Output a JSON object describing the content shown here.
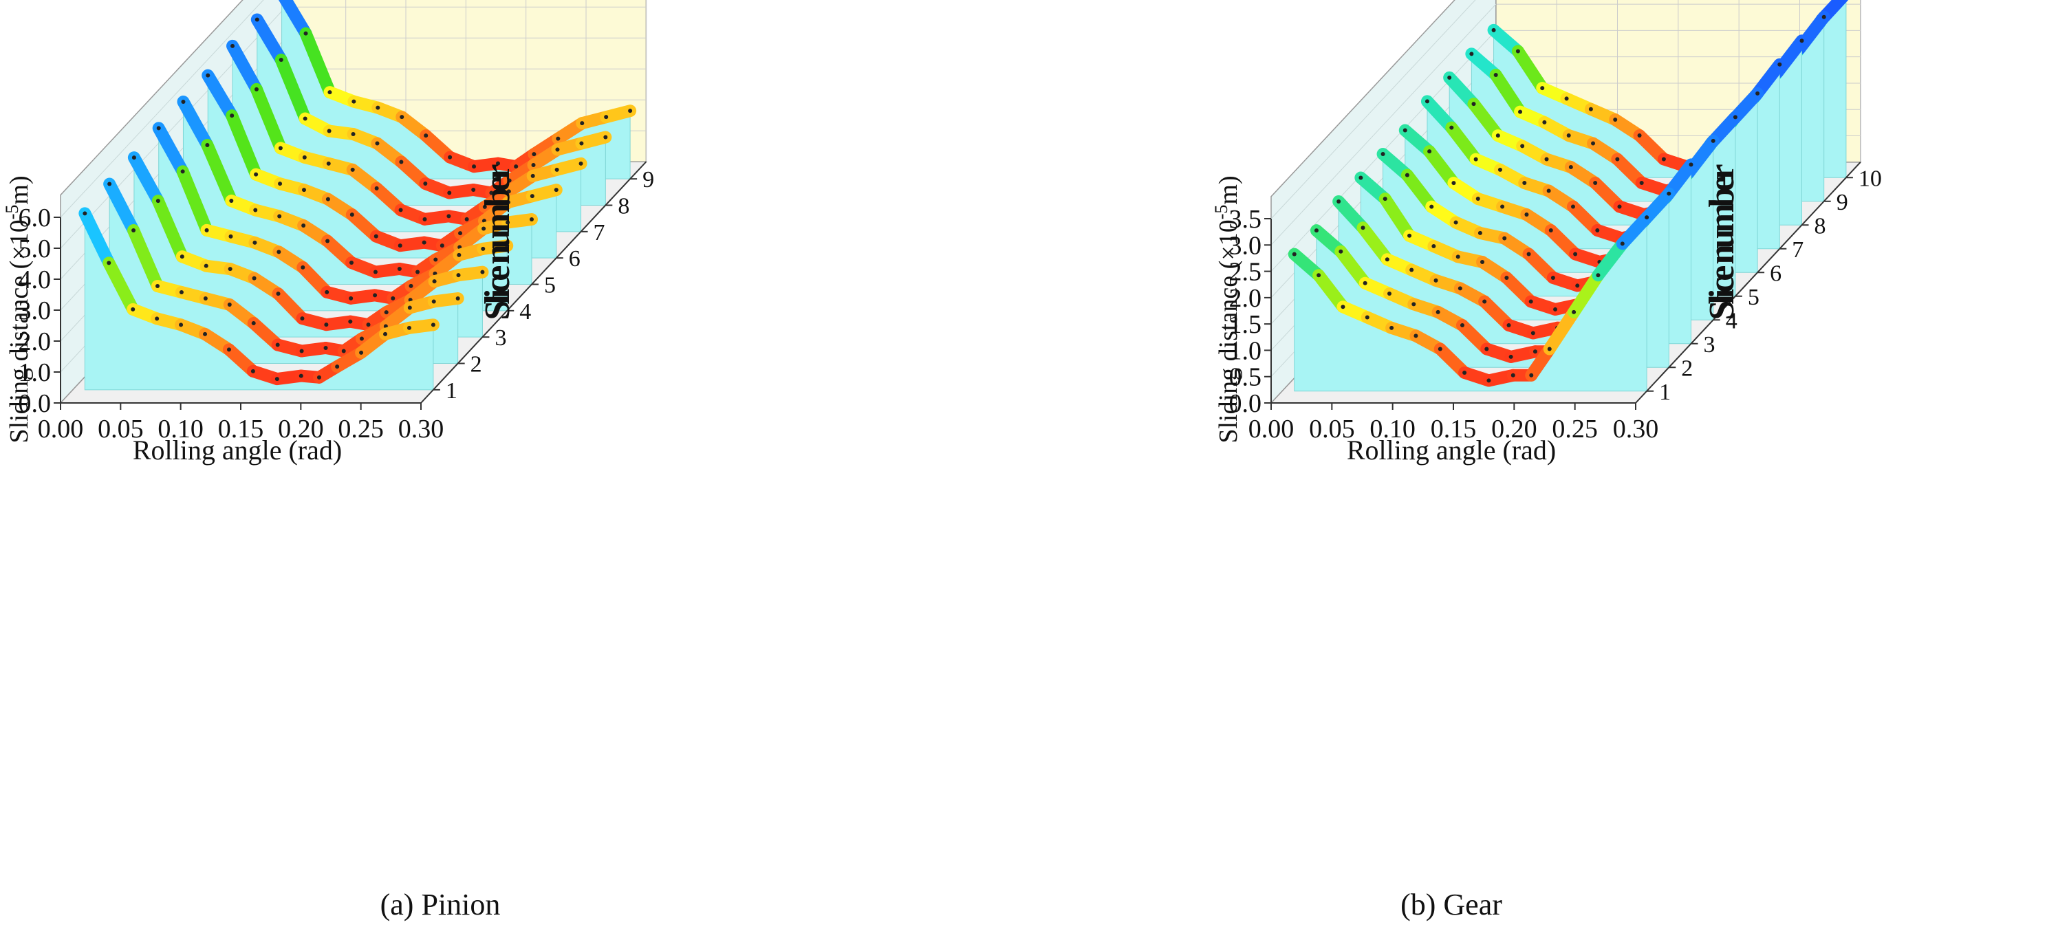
{
  "chart_data": [
    {
      "type": "area",
      "panel": "a",
      "caption": "(a) Pinion",
      "xlabel": "Rolling angle (rad)",
      "ylabel": "Sliding distance (×10⁻⁵m)",
      "ylabel_parts": [
        "Sliding distance (×10",
        "-5",
        "m)"
      ],
      "zlabel": "Slice number",
      "xlim": [
        0.0,
        0.3
      ],
      "ylim": [
        0.0,
        6.0
      ],
      "xticks": [
        "0.00",
        "0.05",
        "0.10",
        "0.15",
        "0.20",
        "0.25",
        "0.30"
      ],
      "yticks": [
        "0.0",
        "1.0",
        "2.0",
        "3.0",
        "4.0",
        "5.0",
        "6.0"
      ],
      "zticks": [
        "1",
        "2",
        "3",
        "4",
        "5",
        "6",
        "7",
        "8",
        "9"
      ],
      "x": [
        0.01,
        0.03,
        0.05,
        0.07,
        0.09,
        0.11,
        0.13,
        0.15,
        0.17,
        0.19,
        0.205,
        0.22,
        0.24,
        0.26,
        0.28,
        0.3
      ],
      "series": [
        {
          "values": [
            5.7,
            4.1,
            2.6,
            2.3,
            2.1,
            1.8,
            1.3,
            0.6,
            0.35,
            0.45,
            0.4,
            0.75,
            1.2,
            1.8,
            2.0,
            2.1
          ]
        },
        {
          "values": [
            5.8,
            4.3,
            2.5,
            2.3,
            2.1,
            1.9,
            1.3,
            0.6,
            0.4,
            0.5,
            0.4,
            0.8,
            1.2,
            1.8,
            2.0,
            2.1
          ]
        },
        {
          "values": [
            5.8,
            4.4,
            2.6,
            2.3,
            2.2,
            1.9,
            1.4,
            0.6,
            0.4,
            0.5,
            0.4,
            0.8,
            1.2,
            1.8,
            2.0,
            2.1
          ]
        },
        {
          "values": [
            5.9,
            4.5,
            2.6,
            2.4,
            2.2,
            1.9,
            1.4,
            0.6,
            0.4,
            0.5,
            0.4,
            0.8,
            1.2,
            1.8,
            2.0,
            2.1
          ]
        },
        {
          "values": [
            5.9,
            4.5,
            2.7,
            2.4,
            2.2,
            1.9,
            1.4,
            0.7,
            0.4,
            0.5,
            0.4,
            0.8,
            1.2,
            1.8,
            2.0,
            2.1
          ]
        },
        {
          "values": [
            5.9,
            4.6,
            2.7,
            2.4,
            2.2,
            1.9,
            1.4,
            0.7,
            0.4,
            0.5,
            0.4,
            0.8,
            1.2,
            1.8,
            2.0,
            2.2
          ]
        },
        {
          "values": [
            6.0,
            4.6,
            2.7,
            2.4,
            2.2,
            2.0,
            1.4,
            0.7,
            0.4,
            0.5,
            0.4,
            0.8,
            1.3,
            1.8,
            2.0,
            2.2
          ]
        },
        {
          "values": [
            6.0,
            4.7,
            2.8,
            2.4,
            2.3,
            2.0,
            1.4,
            0.7,
            0.4,
            0.5,
            0.4,
            0.8,
            1.3,
            1.8,
            2.0,
            2.2
          ]
        },
        {
          "values": [
            6.0,
            4.7,
            2.8,
            2.5,
            2.3,
            2.0,
            1.4,
            0.7,
            0.4,
            0.5,
            0.4,
            0.8,
            1.3,
            1.8,
            2.0,
            2.2
          ]
        }
      ]
    },
    {
      "type": "area",
      "panel": "b",
      "caption": "(b) Gear",
      "xlabel": "Rolling angle (rad)",
      "ylabel": "Sliding distance (×10⁻⁵m)",
      "ylabel_parts": [
        "Sliding distance (×10",
        "-5",
        "m)"
      ],
      "zlabel": "Slice number",
      "xlim": [
        0.0,
        0.3
      ],
      "ylim": [
        0.0,
        3.5
      ],
      "xticks": [
        "0.00",
        "0.05",
        "0.10",
        "0.15",
        "0.20",
        "0.25",
        "0.30"
      ],
      "yticks": [
        "0.0",
        "0.5",
        "1.0",
        "1.5",
        "2.0",
        "2.5",
        "3.0",
        "3.5"
      ],
      "zticks": [
        "1",
        "2",
        "3",
        "4",
        "5",
        "6",
        "7",
        "8",
        "9",
        "10"
      ],
      "x": [
        0.01,
        0.03,
        0.05,
        0.07,
        0.09,
        0.11,
        0.13,
        0.15,
        0.17,
        0.19,
        0.205,
        0.22,
        0.24,
        0.26,
        0.28,
        0.3
      ],
      "series": [
        {
          "values": [
            2.6,
            2.2,
            1.6,
            1.4,
            1.2,
            1.05,
            0.8,
            0.35,
            0.2,
            0.3,
            0.3,
            0.8,
            1.5,
            2.2,
            2.8,
            3.3
          ]
        },
        {
          "values": [
            2.6,
            2.2,
            1.6,
            1.4,
            1.2,
            1.05,
            0.8,
            0.35,
            0.2,
            0.3,
            0.3,
            0.8,
            1.5,
            2.2,
            2.8,
            3.3
          ]
        },
        {
          "values": [
            2.7,
            2.2,
            1.6,
            1.4,
            1.2,
            1.05,
            0.8,
            0.35,
            0.2,
            0.3,
            0.3,
            0.8,
            1.5,
            2.2,
            2.8,
            3.4
          ]
        },
        {
          "values": [
            2.7,
            2.3,
            1.6,
            1.4,
            1.2,
            1.1,
            0.8,
            0.35,
            0.2,
            0.3,
            0.3,
            0.8,
            1.5,
            2.2,
            2.8,
            3.4
          ]
        },
        {
          "values": [
            2.7,
            2.3,
            1.7,
            1.4,
            1.2,
            1.1,
            0.8,
            0.35,
            0.2,
            0.3,
            0.3,
            0.8,
            1.5,
            2.2,
            2.9,
            3.4
          ]
        },
        {
          "values": [
            2.7,
            2.3,
            1.7,
            1.4,
            1.25,
            1.1,
            0.8,
            0.35,
            0.2,
            0.3,
            0.3,
            0.8,
            1.5,
            2.2,
            2.9,
            3.4
          ]
        },
        {
          "values": [
            2.8,
            2.3,
            1.7,
            1.5,
            1.25,
            1.1,
            0.8,
            0.35,
            0.2,
            0.3,
            0.3,
            0.8,
            1.5,
            2.3,
            2.9,
            3.5
          ]
        },
        {
          "values": [
            2.8,
            2.3,
            1.7,
            1.5,
            1.25,
            1.1,
            0.8,
            0.35,
            0.2,
            0.3,
            0.3,
            0.8,
            1.6,
            2.3,
            2.9,
            3.5
          ]
        },
        {
          "values": [
            2.8,
            2.4,
            1.7,
            1.5,
            1.25,
            1.1,
            0.8,
            0.35,
            0.2,
            0.3,
            0.3,
            0.8,
            1.6,
            2.3,
            2.9,
            3.5
          ]
        },
        {
          "values": [
            2.8,
            2.4,
            1.7,
            1.5,
            1.3,
            1.1,
            0.8,
            0.35,
            0.2,
            0.3,
            0.3,
            0.8,
            1.6,
            2.3,
            3.0,
            3.5
          ]
        }
      ]
    }
  ]
}
